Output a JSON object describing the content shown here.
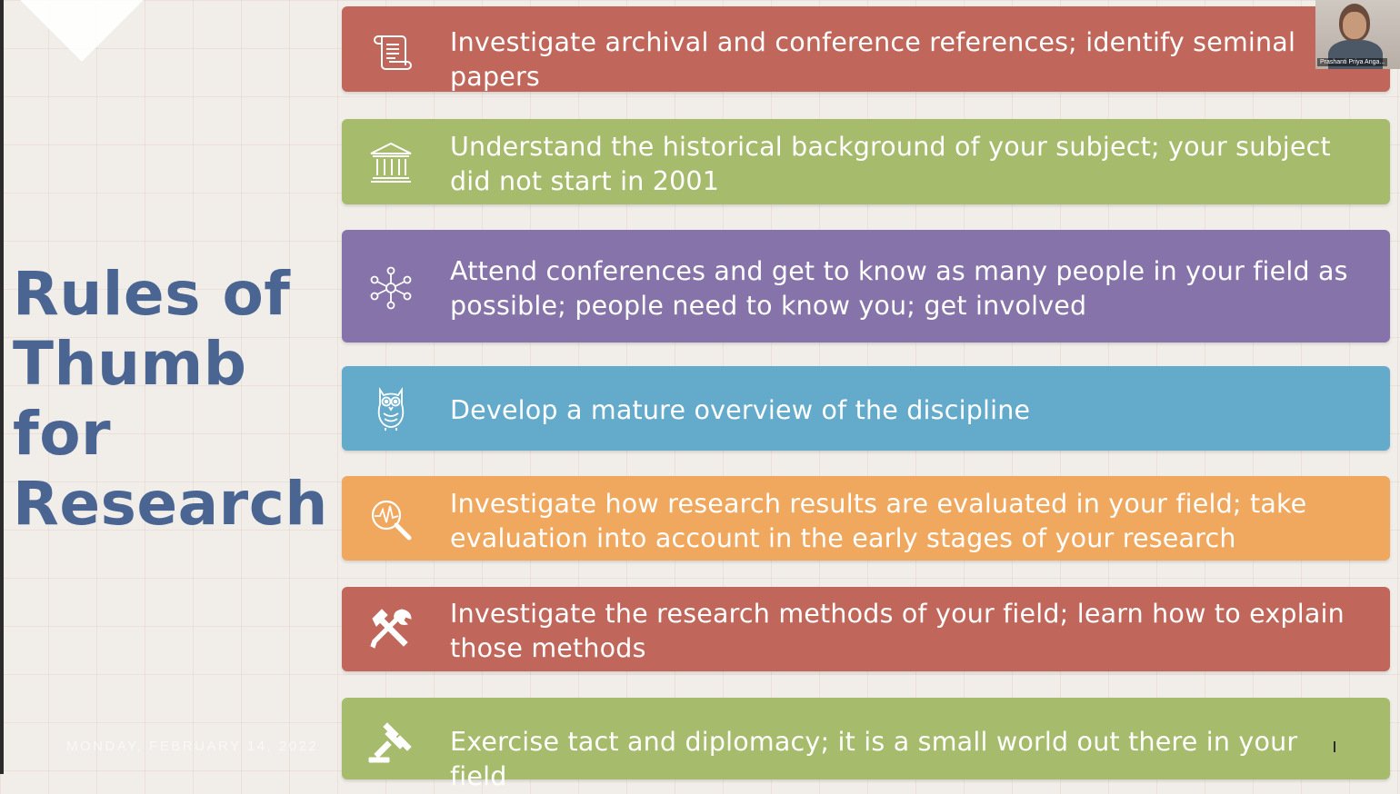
{
  "slide": {
    "title_lines": [
      "Rules of",
      "Thumb",
      "for",
      "Research"
    ],
    "date": "MONDAY, FEBRUARY 14, 2022"
  },
  "cards": [
    {
      "icon": "scroll-icon",
      "text": "Investigate archival and conference references; identify seminal papers",
      "color": "#c0665a"
    },
    {
      "icon": "institution-icon",
      "text": "Understand the historical background of your subject; your subject did not start in 2001",
      "color": "#a6bb6c"
    },
    {
      "icon": "network-icon",
      "text": "Attend conferences and get to know as many people in your field as possible; people need to know you; get involved",
      "color": "#8673a9"
    },
    {
      "icon": "owl-icon",
      "text": "Develop a mature overview of the discipline",
      "color": "#64aacb"
    },
    {
      "icon": "magnifier-pulse-icon",
      "text": "Investigate how research results are evaluated in your field; take evaluation into account in the early stages of your research",
      "color": "#f0a85f"
    },
    {
      "icon": "hammer-wrench-icon",
      "text": "Investigate the research methods of your field; learn how to explain those methods",
      "color": "#c0665a"
    },
    {
      "icon": "gavel-icon",
      "text": "Exercise tact and diplomacy; it is a small world out there in your field",
      "color": "#a6bb6c"
    }
  ],
  "video": {
    "participant_name": "Prashanti Priya Anga..."
  },
  "colors": {
    "title": "#4a6591",
    "background": "#f1eeea"
  }
}
